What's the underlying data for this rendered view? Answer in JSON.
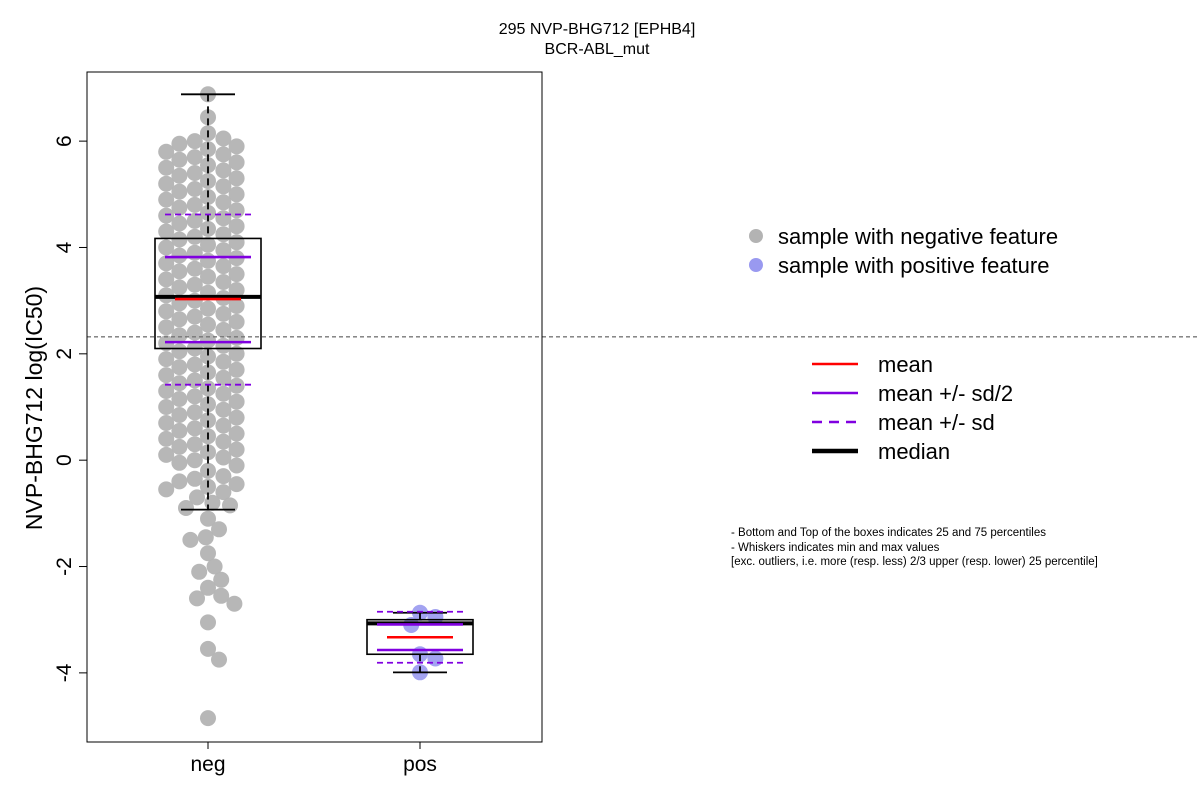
{
  "chart_data": {
    "type": "box-beeswarm",
    "title": "295 NVP-BHG712 [EPHB4]",
    "subtitle": "BCR-ABL_mut",
    "ylabel": "NVP-BHG712 log(IC50)",
    "ylim": [
      -5.3,
      7.3
    ],
    "yticks": [
      "-4",
      "-2",
      "0",
      "2",
      "4",
      "6"
    ],
    "threshold": 2.32,
    "categories": [
      "neg",
      "pos"
    ],
    "groups": [
      {
        "name": "neg",
        "color": "#b3b3b3",
        "box": {
          "q1": 2.1,
          "median": 3.07,
          "q3": 4.17,
          "whisker_low": -0.93,
          "whisker_high": 6.88
        },
        "mean": 3.03,
        "mean_sd2": [
          2.22,
          3.82
        ],
        "mean_sd": [
          1.42,
          4.62
        ],
        "points": [
          6.88,
          6.45,
          6.15,
          6.05,
          6.0,
          5.95,
          5.9,
          5.85,
          5.8,
          5.75,
          5.7,
          5.65,
          5.6,
          5.55,
          5.5,
          5.45,
          5.4,
          5.35,
          5.3,
          5.25,
          5.2,
          5.15,
          5.1,
          5.05,
          5.0,
          4.95,
          4.9,
          4.85,
          4.8,
          4.75,
          4.7,
          4.65,
          4.6,
          4.55,
          4.5,
          4.45,
          4.4,
          4.35,
          4.3,
          4.25,
          4.2,
          4.15,
          4.1,
          4.05,
          4.0,
          3.95,
          3.9,
          3.85,
          3.8,
          3.75,
          3.7,
          3.65,
          3.6,
          3.55,
          3.5,
          3.45,
          3.4,
          3.35,
          3.3,
          3.25,
          3.2,
          3.15,
          3.1,
          3.05,
          3.0,
          2.95,
          2.9,
          2.85,
          2.8,
          2.75,
          2.7,
          2.65,
          2.6,
          2.55,
          2.5,
          2.45,
          2.4,
          2.35,
          2.3,
          2.25,
          2.2,
          2.15,
          2.1,
          2.05,
          2.0,
          1.95,
          1.9,
          1.85,
          1.8,
          1.75,
          1.7,
          1.65,
          1.6,
          1.55,
          1.5,
          1.45,
          1.4,
          1.35,
          1.3,
          1.25,
          1.2,
          1.15,
          1.1,
          1.05,
          1.0,
          0.95,
          0.9,
          0.85,
          0.8,
          0.75,
          0.7,
          0.65,
          0.6,
          0.55,
          0.5,
          0.45,
          0.4,
          0.35,
          0.3,
          0.25,
          0.2,
          0.15,
          0.1,
          0.05,
          0.0,
          -0.05,
          -0.1,
          -0.2,
          -0.3,
          -0.35,
          -0.4,
          -0.45,
          -0.5,
          -0.55,
          -0.6,
          -0.7,
          -0.8,
          -0.85,
          -0.9,
          -1.1,
          -1.3,
          -1.45,
          -1.5,
          -1.75,
          -2.0,
          -2.1,
          -2.25,
          -2.4,
          -2.55,
          -2.6,
          -2.7,
          -3.05,
          -3.55,
          -3.75,
          -4.85
        ]
      },
      {
        "name": "pos",
        "color": "#9999f0",
        "box": {
          "q1": -3.65,
          "median": -3.07,
          "q3": -3.0,
          "whisker_low": -3.99,
          "whisker_high": -2.87
        },
        "mean": -3.33,
        "mean_sd2": [
          -3.57,
          -3.09
        ],
        "mean_sd": [
          -3.81,
          -2.85
        ],
        "points": [
          -2.87,
          -2.95,
          -3.1,
          -3.65,
          -3.73,
          -3.99
        ]
      }
    ],
    "legend": {
      "placement": "right",
      "points": [
        {
          "label": "sample with negative feature",
          "color": "#b3b3b3"
        },
        {
          "label": "sample with positive feature",
          "color": "#9999f0"
        }
      ],
      "lines": [
        {
          "label": "mean",
          "color": "#ff0000",
          "style": "solid"
        },
        {
          "label": "mean +/- sd/2",
          "color": "#8000e0",
          "style": "solid"
        },
        {
          "label": "mean +/- sd",
          "color": "#8000e0",
          "style": "dashed"
        },
        {
          "label": "median",
          "color": "#000000",
          "style": "bold"
        }
      ]
    },
    "notes": [
      "- Bottom and Top of the boxes indicates 25 and 75 percentiles",
      "- Whiskers indicates min and max values",
      "[exc. outliers, i.e. more (resp. less) 2/3 upper (resp. lower) 25 percentile]"
    ]
  }
}
